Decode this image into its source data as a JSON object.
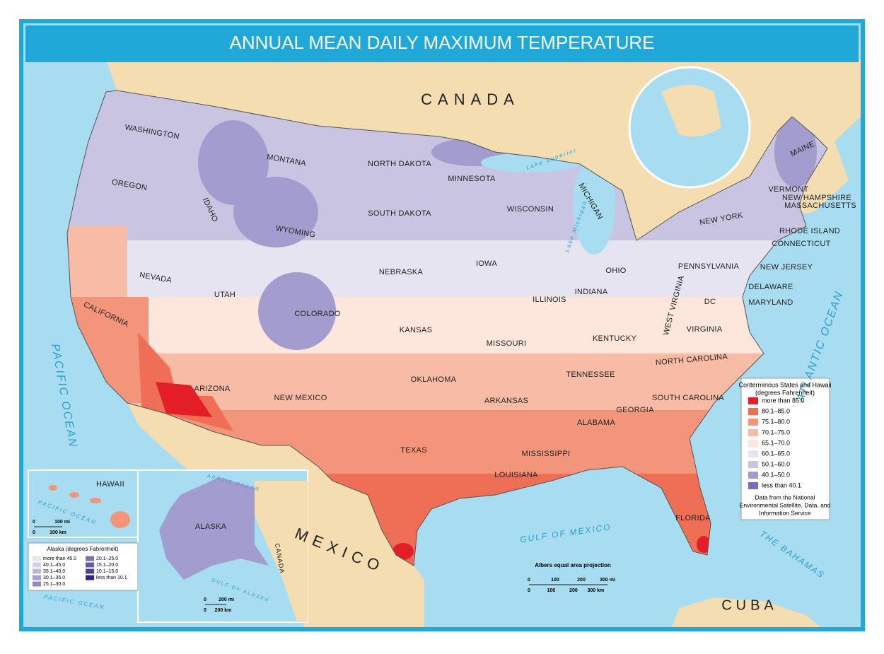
{
  "title": "ANNUAL MEAN DAILY MAXIMUM TEMPERATURE",
  "countries": [
    "CANADA",
    "MEXICO",
    "CUBA",
    "CANADA"
  ],
  "water": [
    "PACIFIC OCEAN",
    "ATLANTIC OCEAN",
    "GULF OF MEXICO",
    "THE BAHAMAS",
    "Lake Superior",
    "Lake Michigan",
    "PACIFIC OCEAN",
    "PACIFIC OCEAN",
    "ARCTIC OCEAN",
    "GULF OF ALASKA"
  ],
  "states": [
    "WASHINGTON",
    "OREGON",
    "CALIFORNIA",
    "NEVADA",
    "IDAHO",
    "MONTANA",
    "WYOMING",
    "UTAH",
    "ARIZONA",
    "COLORADO",
    "NEW MEXICO",
    "NORTH DAKOTA",
    "SOUTH DAKOTA",
    "NEBRASKA",
    "KANSAS",
    "OKLAHOMA",
    "TEXAS",
    "MINNESOTA",
    "IOWA",
    "MISSOURI",
    "ARKANSAS",
    "LOUISIANA",
    "WISCONSIN",
    "ILLINOIS",
    "MICHIGAN",
    "INDIANA",
    "OHIO",
    "KENTUCKY",
    "TENNESSEE",
    "MISSISSIPPI",
    "ALABAMA",
    "GEORGIA",
    "FLORIDA",
    "SOUTH CAROLINA",
    "NORTH CAROLINA",
    "VIRGINIA",
    "WEST VIRGINIA",
    "PENNSYLVANIA",
    "NEW YORK",
    "MAINE",
    "VERMONT",
    "NEW HAMPSHIRE",
    "MASSACHUSETTS",
    "RHODE ISLAND",
    "CONNECTICUT",
    "NEW JERSEY",
    "DELAWARE",
    "MARYLAND",
    "DC",
    "HAWAII",
    "ALASKA"
  ],
  "legend": {
    "title": [
      "Conterminous States and Hawaii",
      "(degrees Fahrenheit)"
    ],
    "items": [
      {
        "label": "more than 85.0",
        "color": "#e31e26"
      },
      {
        "label": "80.1–85.0",
        "color": "#ee6f55"
      },
      {
        "label": "75.1–80.0",
        "color": "#f3957a"
      },
      {
        "label": "70.1–75.0",
        "color": "#f8bca6"
      },
      {
        "label": "65.1–70.0",
        "color": "#fde6db"
      },
      {
        "label": "60.1–65.0",
        "color": "#e6e4f1"
      },
      {
        "label": "50.1–60.0",
        "color": "#c8c4e2"
      },
      {
        "label": "40.1–50.0",
        "color": "#a39cce"
      },
      {
        "label": "less than 40.1",
        "color": "#7a6db6"
      }
    ],
    "source": [
      "Data from the National",
      "Environmental Satellite, Data, and",
      "Information Service"
    ]
  },
  "alaska_legend": {
    "title": "Alaska (degrees Fahrenheit)",
    "items": [
      {
        "label": "more than 45.0",
        "color": "#e6e4f1"
      },
      {
        "label": "40.1–45.0",
        "color": "#d3d0e8"
      },
      {
        "label": "35.1–40.0",
        "color": "#bdb8dc"
      },
      {
        "label": "30.1–35.0",
        "color": "#a7a0d0"
      },
      {
        "label": "25.1–30.0",
        "color": "#9189c4"
      },
      {
        "label": "20.1–25.0",
        "color": "#7c70b8"
      },
      {
        "label": "15.1–20.0",
        "color": "#6657ab"
      },
      {
        "label": "10.1–15.0",
        "color": "#4f3e9d"
      },
      {
        "label": "less than 10.1",
        "color": "#33228a"
      }
    ]
  },
  "projection": "Albers equal area projection",
  "scale_bar": {
    "miles": [
      "0",
      "100",
      "200",
      "300 mi"
    ],
    "km": [
      "0",
      "100",
      "200",
      "300 km"
    ]
  },
  "hawaii_scale": {
    "miles": [
      "0",
      "100 mi"
    ],
    "km": [
      "0",
      "100 km"
    ]
  },
  "alaska_scale": {
    "miles": [
      "0",
      "200 mi"
    ],
    "km": [
      "0",
      "200 km"
    ]
  }
}
